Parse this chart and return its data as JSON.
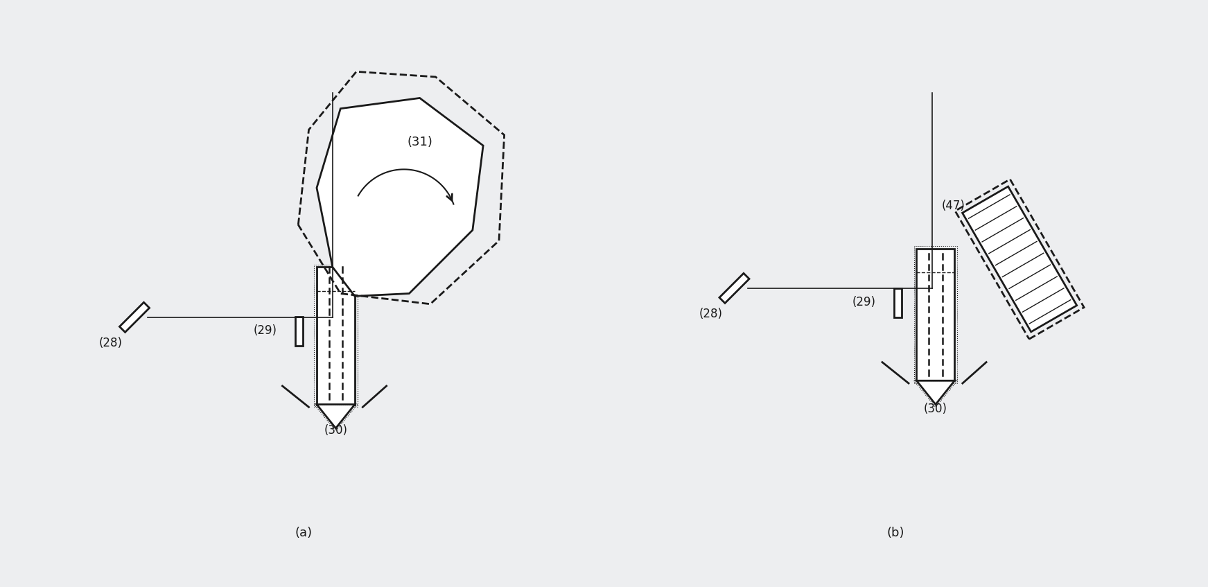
{
  "bg_color": "#edeef0",
  "line_color": "#1a1a1a",
  "fig_label_a": "(a)",
  "fig_label_b": "(b)",
  "label_28": "(28)",
  "label_29": "(29)",
  "label_30": "(30)",
  "label_31": "(31)",
  "label_47": "(47)",
  "font_size": 12
}
